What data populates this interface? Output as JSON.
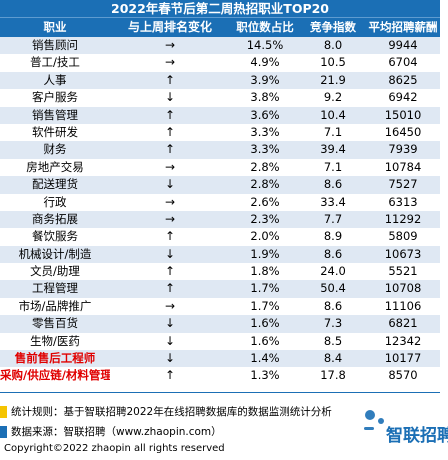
{
  "chart_data": {
    "type": "table",
    "title": "2022年春节后第二周热招职业TOP20",
    "columns": [
      "职业",
      "与上周排名变化",
      "职位数占比",
      "竞争指数",
      "平均招聘薪酬"
    ],
    "rows": [
      {
        "job": "销售顾问",
        "change": "→",
        "ratio": "14.5%",
        "competition": "8.0",
        "salary": "9944",
        "highlight": false
      },
      {
        "job": "普工/技工",
        "change": "→",
        "ratio": "4.9%",
        "competition": "10.5",
        "salary": "6704",
        "highlight": false
      },
      {
        "job": "人事",
        "change": "↑",
        "ratio": "3.9%",
        "competition": "21.9",
        "salary": "8625",
        "highlight": false
      },
      {
        "job": "客户服务",
        "change": "↓",
        "ratio": "3.8%",
        "competition": "9.2",
        "salary": "6942",
        "highlight": false
      },
      {
        "job": "销售管理",
        "change": "↑",
        "ratio": "3.6%",
        "competition": "10.4",
        "salary": "15010",
        "highlight": false
      },
      {
        "job": "软件研发",
        "change": "↑",
        "ratio": "3.3%",
        "competition": "7.1",
        "salary": "16450",
        "highlight": false
      },
      {
        "job": "财务",
        "change": "↑",
        "ratio": "3.3%",
        "competition": "39.4",
        "salary": "7939",
        "highlight": false
      },
      {
        "job": "房地产交易",
        "change": "→",
        "ratio": "2.8%",
        "competition": "7.1",
        "salary": "10784",
        "highlight": false
      },
      {
        "job": "配送理货",
        "change": "↓",
        "ratio": "2.8%",
        "competition": "8.6",
        "salary": "7527",
        "highlight": false
      },
      {
        "job": "行政",
        "change": "→",
        "ratio": "2.6%",
        "competition": "33.4",
        "salary": "6313",
        "highlight": false
      },
      {
        "job": "商务拓展",
        "change": "→",
        "ratio": "2.3%",
        "competition": "7.7",
        "salary": "11292",
        "highlight": false
      },
      {
        "job": "餐饮服务",
        "change": "↑",
        "ratio": "2.0%",
        "competition": "8.9",
        "salary": "5809",
        "highlight": false
      },
      {
        "job": "机械设计/制造",
        "change": "↓",
        "ratio": "1.9%",
        "competition": "8.6",
        "salary": "10673",
        "highlight": false
      },
      {
        "job": "文员/助理",
        "change": "↑",
        "ratio": "1.8%",
        "competition": "24.0",
        "salary": "5521",
        "highlight": false
      },
      {
        "job": "工程管理",
        "change": "↑",
        "ratio": "1.7%",
        "competition": "50.4",
        "salary": "10708",
        "highlight": false
      },
      {
        "job": "市场/品牌推广",
        "change": "→",
        "ratio": "1.7%",
        "competition": "8.6",
        "salary": "11106",
        "highlight": false
      },
      {
        "job": "零售百货",
        "change": "↓",
        "ratio": "1.6%",
        "competition": "7.3",
        "salary": "6821",
        "highlight": false
      },
      {
        "job": "生物/医药",
        "change": "↓",
        "ratio": "1.6%",
        "competition": "8.5",
        "salary": "12342",
        "highlight": false
      },
      {
        "job": "售前售后工程师",
        "change": "↓",
        "ratio": "1.4%",
        "competition": "8.4",
        "salary": "10177",
        "highlight": true
      },
      {
        "job": "采购/供应链/材料管理",
        "change": "↑",
        "ratio": "1.3%",
        "competition": "17.8",
        "salary": "8570",
        "highlight": true
      }
    ]
  },
  "footer": {
    "stat_rule": "统计规则：基于智联招聘2022年在线招聘数据库的数据监测统计分析",
    "data_source": "数据来源：智联招聘（www.zhaopin.com）",
    "copyright": "Copyright©2022 zhaopin all rights reserved",
    "logo_text": "智联招聘"
  },
  "colors": {
    "header_blue": "#1b6fb5",
    "row_alt": "#dfe8f3",
    "highlight_red": "#e00000",
    "rule_yellow": "#f5c400",
    "source_blue": "#1b6fb5"
  }
}
